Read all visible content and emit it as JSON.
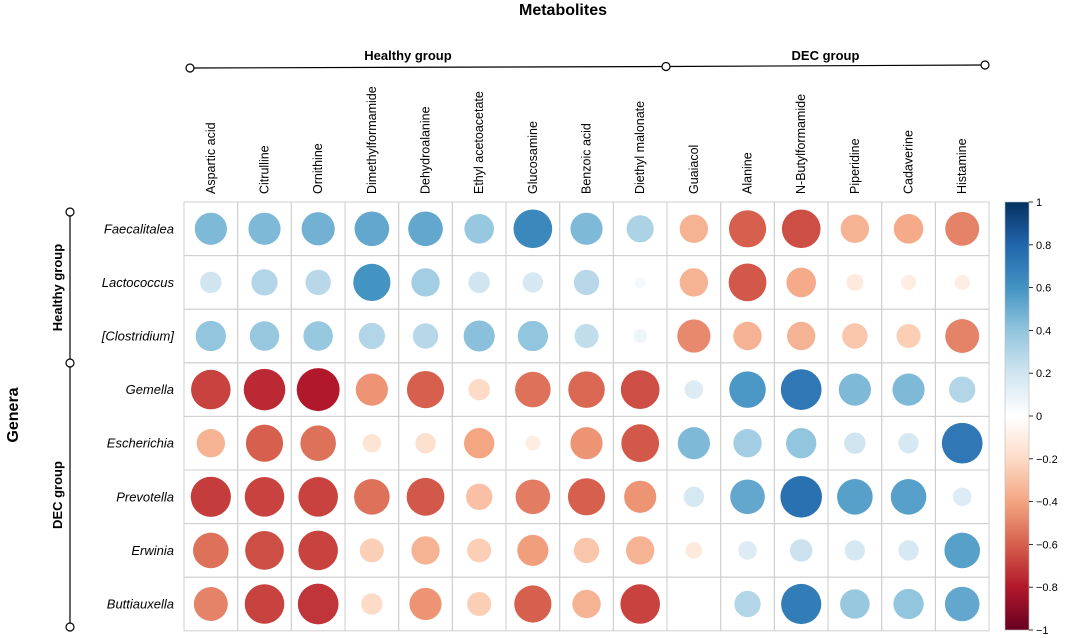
{
  "chart_data": {
    "type": "heatmap",
    "style": "correlation-circles",
    "title_top": "Metabolites",
    "title_left": "Genera",
    "column_groups": [
      {
        "label": "Healthy group",
        "start": 0,
        "end": 8
      },
      {
        "label": "DEC group",
        "start": 9,
        "end": 14
      }
    ],
    "row_groups": [
      {
        "label": "Healthy group",
        "start": 0,
        "end": 2
      },
      {
        "label": "DEC group",
        "start": 3,
        "end": 7
      }
    ],
    "columns": [
      "Aspartic acid",
      "Citrulline",
      "Ornithine",
      "Dimethylformamide",
      "Dehydroalanine",
      "Ethyl acetoacetate",
      "Glucosamine",
      "Benzoic acid",
      "Diethyl malonate",
      "Guaiacol",
      "Alanine",
      "N-Butylformamide",
      "Piperidine",
      "Cadaverine",
      "Histamine"
    ],
    "rows": [
      "Faecalitalea",
      "Lactococcus",
      "[Clostridium]",
      "Gemella",
      "Escherichia",
      "Prevotella",
      "Erwinia",
      "Buttiauxella"
    ],
    "values": [
      [
        0.45,
        0.45,
        0.48,
        0.52,
        0.52,
        0.38,
        0.65,
        0.45,
        0.32,
        -0.35,
        -0.6,
        -0.65,
        -0.35,
        -0.38,
        -0.5
      ],
      [
        0.2,
        0.3,
        0.28,
        0.6,
        0.35,
        0.2,
        0.18,
        0.28,
        0.05,
        -0.35,
        -0.62,
        -0.38,
        -0.12,
        -0.1,
        -0.1
      ],
      [
        0.4,
        0.38,
        0.38,
        0.3,
        0.28,
        0.42,
        0.4,
        0.25,
        0.08,
        -0.48,
        -0.35,
        -0.35,
        -0.28,
        -0.25,
        -0.5
      ],
      [
        -0.68,
        -0.75,
        -0.8,
        -0.45,
        -0.6,
        -0.2,
        -0.55,
        -0.58,
        -0.65,
        0.15,
        0.58,
        0.72,
        0.45,
        0.45,
        0.3
      ],
      [
        -0.35,
        -0.6,
        -0.55,
        -0.15,
        -0.18,
        -0.4,
        -0.1,
        -0.45,
        -0.62,
        0.45,
        0.35,
        0.4,
        0.2,
        0.18,
        0.72
      ],
      [
        -0.7,
        -0.68,
        -0.68,
        -0.55,
        -0.62,
        -0.3,
        -0.52,
        -0.6,
        -0.45,
        0.18,
        0.52,
        0.75,
        0.55,
        0.55,
        0.15
      ],
      [
        -0.55,
        -0.65,
        -0.68,
        -0.25,
        -0.35,
        -0.25,
        -0.42,
        -0.28,
        -0.35,
        -0.12,
        0.15,
        0.22,
        0.18,
        0.18,
        0.55
      ],
      [
        -0.5,
        -0.68,
        -0.72,
        -0.2,
        -0.45,
        -0.25,
        -0.6,
        -0.35,
        -0.68,
        0.0,
        0.3,
        0.7,
        0.38,
        0.4,
        0.52
      ]
    ],
    "colorbar": {
      "range": [
        -1,
        1
      ],
      "ticks": [
        "1",
        "0.8",
        "0.6",
        "0.4",
        "0.2",
        "0",
        "−0.2",
        "−0.4",
        "−0.6",
        "−0.8",
        "−1"
      ],
      "colors": [
        "#053061",
        "#2166AC",
        "#4393C3",
        "#92C5DE",
        "#D1E5F0",
        "#FFFFFF",
        "#FDDBC7",
        "#F4A582",
        "#D6604D",
        "#B2182B",
        "#67001F"
      ]
    }
  }
}
